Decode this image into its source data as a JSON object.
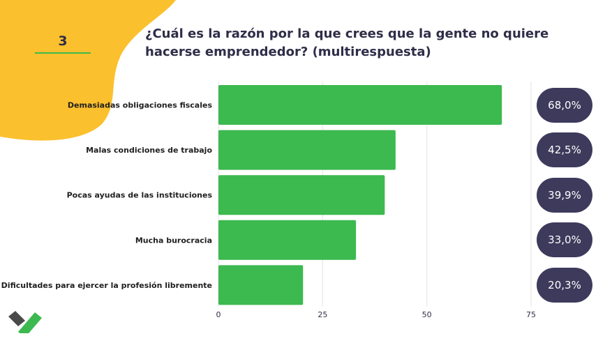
{
  "question_number": "3",
  "title": "¿Cuál es la razón por la que crees que la gente no quiere hacerse emprendedor? (multirespuesta)",
  "colors": {
    "bar": "#3cb94f",
    "pill": "#3d3a5c",
    "accent": "#fbc02d",
    "text": "#2f2d48"
  },
  "chart_data": {
    "type": "bar",
    "orientation": "horizontal",
    "title": "¿Cuál es la razón por la que crees que la gente no quiere hacerse emprendedor? (multirespuesta)",
    "categories": [
      "Demasiadas obligaciones fiscales",
      "Malas condiciones de trabajo",
      "Pocas ayudas de las instituciones",
      "Mucha burocracia",
      "Dificultades para ejercer la profesión libremente"
    ],
    "values": [
      68.0,
      42.5,
      39.9,
      33.0,
      20.3
    ],
    "value_labels": [
      "68,0%",
      "42,5%",
      "39,9%",
      "33,0%",
      "20,3%"
    ],
    "xlim": [
      0,
      75
    ],
    "x_ticks": [
      "0",
      "25",
      "50",
      "75"
    ],
    "grid": true
  }
}
